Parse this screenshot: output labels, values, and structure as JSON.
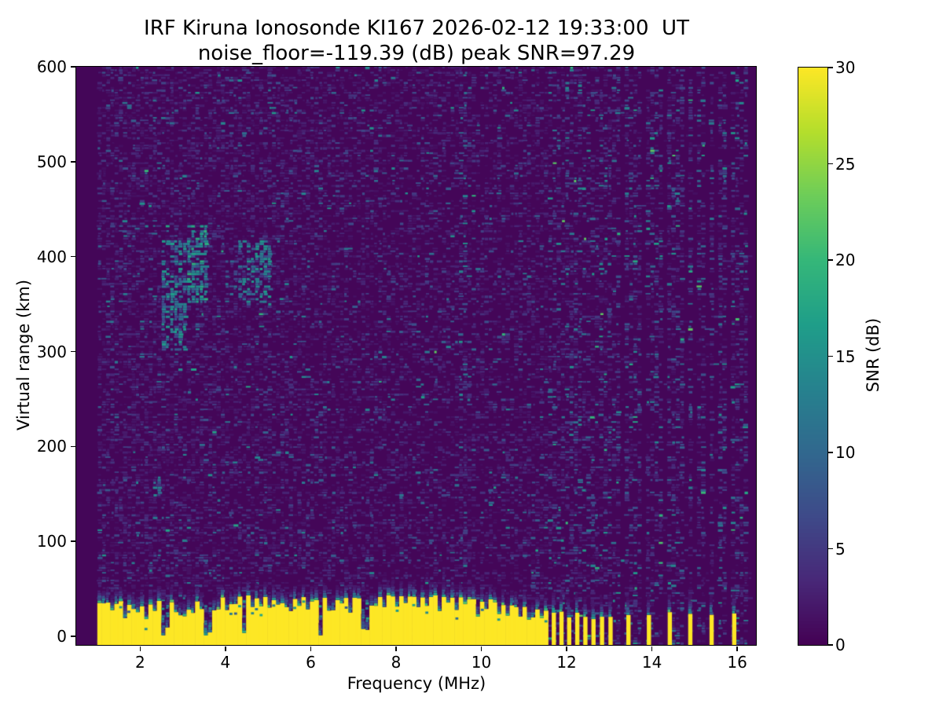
{
  "figure": {
    "title_line1": "IRF Kiruna Ionosonde KI167 2026-02-12 19:33:00  UT",
    "title_line2": "noise_floor=-119.39 (dB) peak SNR=97.29"
  },
  "chart_data": {
    "type": "heatmap",
    "title": "IRF Kiruna Ionosonde KI167 2026-02-12 19:33:00  UT",
    "subtitle": "noise_floor=-119.39 (dB) peak SNR=97.29",
    "station": "KI167",
    "timestamp_ut": "2026-02-12 19:33:00",
    "noise_floor_db": -119.39,
    "peak_snr_db": 97.29,
    "xlabel": "Frequency (MHz)",
    "ylabel": "Virtual range (km)",
    "colorbar_label": "SNR (dB)",
    "colormap": "viridis",
    "x_range_mhz": [
      0.5,
      16.44
    ],
    "y_range_km": [
      -9.1,
      600
    ],
    "snr_range_db": [
      0,
      30
    ],
    "x_ticks": [
      2,
      4,
      6,
      8,
      10,
      12,
      14,
      16
    ],
    "y_ticks": [
      0,
      100,
      200,
      300,
      400,
      500,
      600
    ],
    "colorbar_ticks": [
      0,
      5,
      10,
      15,
      20,
      25,
      30
    ],
    "grid": false,
    "legend": "colorbar-right",
    "sounding": {
      "seed": 167,
      "data_freq_start_mhz": 1.0,
      "continuous_band_end_mhz": 11.6,
      "ground_band_top_km": 36,
      "ground_band_snr_db": 30,
      "sparse_bar_freqs_mhz": [
        11.7,
        11.88,
        12.06,
        12.25,
        12.44,
        12.63,
        12.83,
        13.03,
        13.45,
        13.93,
        14.42,
        14.9,
        15.4,
        15.93
      ],
      "rfi_stripe_freqs_mhz": [
        11.7,
        11.88,
        12.06,
        12.25,
        12.44,
        12.63,
        12.83,
        13.03,
        13.2,
        13.45,
        13.68,
        13.93,
        14.17,
        14.42,
        14.66,
        14.9,
        15.16,
        15.4,
        15.66,
        15.93,
        16.18
      ],
      "weak_stripe_freqs_mhz": [
        9.55
      ],
      "echo_patches": [
        {
          "f_mhz": [
            2.5,
            3.05
          ],
          "range_km": [
            300,
            418
          ],
          "snr_db": 13,
          "density": 0.55
        },
        {
          "f_mhz": [
            3.05,
            3.62
          ],
          "range_km": [
            350,
            432
          ],
          "snr_db": 15,
          "density": 0.7
        },
        {
          "f_mhz": [
            4.3,
            5.05
          ],
          "range_km": [
            348,
            418
          ],
          "snr_db": 13,
          "density": 0.5
        },
        {
          "f_mhz": [
            2.28,
            2.52
          ],
          "range_km": [
            148,
            168
          ],
          "snr_db": 12,
          "density": 0.6
        },
        {
          "f_mhz": [
            4.0,
            4.35
          ],
          "range_km": [
            358,
            400
          ],
          "snr_db": 9,
          "density": 0.35
        }
      ],
      "band_notches": [
        [
          1.35,
          10
        ],
        [
          1.62,
          18
        ],
        [
          1.88,
          8
        ],
        [
          2.12,
          12
        ],
        [
          2.35,
          10
        ],
        [
          2.6,
          34
        ],
        [
          2.82,
          8
        ],
        [
          3.0,
          14
        ],
        [
          3.2,
          10
        ],
        [
          3.42,
          12
        ],
        [
          3.58,
          32
        ],
        [
          3.8,
          12
        ],
        [
          4.02,
          10
        ],
        [
          4.2,
          8
        ],
        [
          4.42,
          36
        ],
        [
          4.62,
          10
        ],
        [
          4.85,
          14
        ],
        [
          5.05,
          10
        ],
        [
          5.3,
          8
        ],
        [
          5.5,
          12
        ],
        [
          5.72,
          8
        ],
        [
          5.95,
          14
        ],
        [
          6.25,
          34
        ],
        [
          6.5,
          10
        ],
        [
          6.72,
          8
        ],
        [
          6.95,
          12
        ],
        [
          7.28,
          30
        ],
        [
          7.5,
          10
        ],
        [
          7.75,
          8
        ],
        [
          8.0,
          14
        ],
        [
          8.25,
          8
        ],
        [
          8.5,
          10
        ],
        [
          8.72,
          12
        ],
        [
          9.0,
          10
        ],
        [
          9.2,
          8
        ],
        [
          9.45,
          12
        ],
        [
          9.65,
          10
        ],
        [
          9.9,
          14
        ],
        [
          10.15,
          10
        ],
        [
          10.4,
          12
        ],
        [
          10.65,
          10
        ],
        [
          10.9,
          12
        ],
        [
          11.15,
          10
        ],
        [
          11.4,
          8
        ]
      ]
    }
  }
}
